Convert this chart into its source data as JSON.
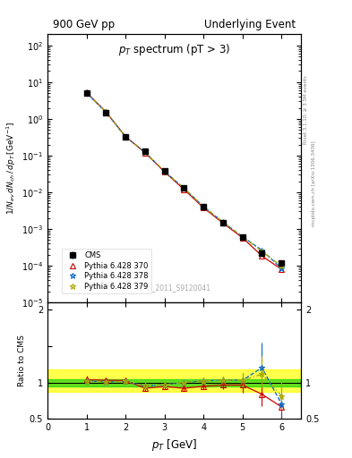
{
  "title_left": "900 GeV pp",
  "title_right": "Underlying Event",
  "plot_title": "p_{T} spectrum (pT > 3)",
  "ylabel_main": "1/N_{ev} dN_{ch} / dp_{T} [GeV^{-1}]",
  "ylabel_ratio": "Ratio to CMS",
  "xlabel": "p_{T} [GeV]",
  "watermark": "CMS_2011_S9120041",
  "right_label_bottom": "mcplots.cern.ch [arXiv:1306.3436]",
  "right_label_top": "Rivet 3.1.10; ≥ 3.5M events",
  "cms_x": [
    1.0,
    1.5,
    2.0,
    2.5,
    3.0,
    3.5,
    4.0,
    4.5,
    5.0,
    5.5,
    6.0
  ],
  "cms_y": [
    5.0,
    1.5,
    0.32,
    0.13,
    0.038,
    0.013,
    0.004,
    0.0015,
    0.0006,
    0.00022,
    0.00012
  ],
  "cms_yerr_lo": [
    0.25,
    0.07,
    0.014,
    0.006,
    0.0018,
    0.0007,
    0.0002,
    8e-05,
    3e-05,
    1e-05,
    8e-06
  ],
  "cms_yerr_hi": [
    0.25,
    0.07,
    0.014,
    0.006,
    0.0018,
    0.0007,
    0.0002,
    8e-05,
    3e-05,
    1e-05,
    8e-06
  ],
  "p370_x": [
    1.0,
    1.5,
    2.0,
    2.5,
    3.0,
    3.5,
    4.0,
    4.5,
    5.0,
    5.5,
    6.0
  ],
  "p370_y": [
    5.2,
    1.55,
    0.33,
    0.12,
    0.036,
    0.012,
    0.0038,
    0.00145,
    0.00058,
    0.000185,
    8e-05
  ],
  "p370_color": "#cc0000",
  "p370_label": "Pythia 6.428 370",
  "p378_x": [
    1.0,
    1.5,
    2.0,
    2.5,
    3.0,
    3.5,
    4.0,
    4.5,
    5.0,
    5.5,
    6.0
  ],
  "p378_y": [
    5.1,
    1.52,
    0.325,
    0.124,
    0.037,
    0.013,
    0.0041,
    0.00155,
    0.00062,
    0.000265,
    8.5e-05
  ],
  "p378_color": "#0066cc",
  "p378_label": "Pythia 6.428 378",
  "p379_x": [
    1.0,
    1.5,
    2.0,
    2.5,
    3.0,
    3.5,
    4.0,
    4.5,
    5.0,
    5.5,
    6.0
  ],
  "p379_y": [
    5.1,
    1.52,
    0.325,
    0.124,
    0.037,
    0.013,
    0.0041,
    0.00155,
    0.00062,
    0.000245,
    9.8e-05
  ],
  "p379_color": "#aaaa00",
  "p379_label": "Pythia 6.428 379",
  "ratio_x": [
    1.0,
    1.5,
    2.0,
    2.5,
    3.0,
    3.5,
    4.0,
    4.5,
    5.0,
    5.5,
    6.0
  ],
  "ratio_370": [
    1.04,
    1.033,
    1.03,
    0.923,
    0.947,
    0.923,
    0.95,
    0.967,
    0.967,
    0.841,
    0.667
  ],
  "ratio_370_yerr_lo": [
    0.05,
    0.03,
    0.03,
    0.04,
    0.04,
    0.04,
    0.04,
    0.05,
    0.1,
    0.16,
    0.2
  ],
  "ratio_370_yerr_hi": [
    0.05,
    0.03,
    0.03,
    0.04,
    0.04,
    0.04,
    0.04,
    0.05,
    0.1,
    0.16,
    0.2
  ],
  "ratio_378": [
    1.02,
    1.013,
    1.016,
    0.954,
    0.974,
    1.0,
    1.025,
    1.033,
    1.033,
    1.205,
    0.708
  ],
  "ratio_378_yerr_lo": [
    0.05,
    0.03,
    0.03,
    0.04,
    0.04,
    0.04,
    0.04,
    0.05,
    0.1,
    0.2,
    0.22
  ],
  "ratio_378_yerr_hi": [
    0.05,
    0.03,
    0.03,
    0.04,
    0.04,
    0.04,
    0.04,
    0.05,
    0.1,
    0.35,
    0.22
  ],
  "ratio_379": [
    1.02,
    1.013,
    1.016,
    0.954,
    0.974,
    1.0,
    1.025,
    1.033,
    1.033,
    1.115,
    0.817
  ],
  "ratio_379_yerr_lo": [
    0.05,
    0.03,
    0.03,
    0.04,
    0.04,
    0.04,
    0.04,
    0.05,
    0.1,
    0.18,
    0.2
  ],
  "ratio_379_yerr_hi": [
    0.05,
    0.03,
    0.03,
    0.04,
    0.04,
    0.04,
    0.04,
    0.05,
    0.1,
    0.25,
    0.2
  ],
  "band_green_lo": 0.95,
  "band_green_hi": 1.05,
  "band_yellow_lo": 0.88,
  "band_yellow_hi": 1.18,
  "ylim_main_lo": 1e-05,
  "ylim_main_hi": 200.0,
  "ylim_ratio_lo": 0.5,
  "ylim_ratio_hi": 2.1,
  "xlim_lo": 0.0,
  "xlim_hi": 6.5
}
